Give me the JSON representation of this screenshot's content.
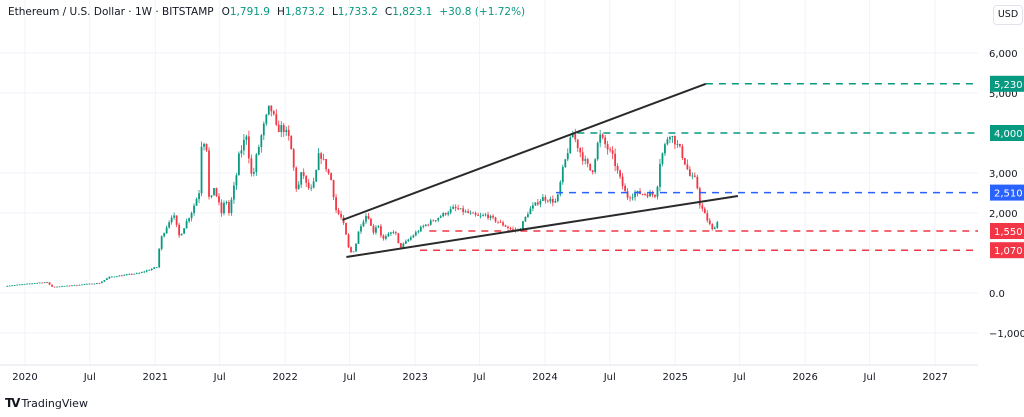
{
  "header": {
    "symbol": "Ethereum / U.S. Dollar · 1W · BITSTAMP",
    "open_label": "O",
    "open": "1,791.9",
    "high_label": "H",
    "high": "1,873.2",
    "low_label": "L",
    "low": "1,733.2",
    "close_label": "C",
    "close": "1,823.1",
    "change": "+30.8 (+1.72%)"
  },
  "currency": "USD",
  "branding": {
    "name": "TradingView",
    "logo_text": "TV"
  },
  "colors": {
    "up": "#089981",
    "down": "#f23645",
    "blue": "#2962ff",
    "trendline": "#2a2a2a",
    "grid": "#f0f3fa"
  },
  "chart_data": {
    "type": "candlestick",
    "interval": "1W",
    "grid": true,
    "ylim": [
      -1500,
      7000
    ],
    "xlim": [
      "2019-11-01",
      "2027-12-31"
    ],
    "y_ticks": [
      {
        "value": 6000,
        "label": "6,000"
      },
      {
        "value": 5000,
        "label": "5,000"
      },
      {
        "value": 3000,
        "label": "3,000"
      },
      {
        "value": 2000,
        "label": "2,000"
      },
      {
        "value": 0,
        "label": "0.0"
      },
      {
        "value": -1000,
        "label": "−1,000"
      }
    ],
    "x_ticks": [
      {
        "date": "2020-01-01",
        "label": "2020"
      },
      {
        "date": "2020-07-01",
        "label": "Jul"
      },
      {
        "date": "2021-01-01",
        "label": "2021"
      },
      {
        "date": "2021-07-01",
        "label": "Jul"
      },
      {
        "date": "2022-01-01",
        "label": "2022"
      },
      {
        "date": "2022-07-01",
        "label": "Jul"
      },
      {
        "date": "2023-01-01",
        "label": "2023"
      },
      {
        "date": "2023-07-01",
        "label": "Jul"
      },
      {
        "date": "2024-01-01",
        "label": "2024"
      },
      {
        "date": "2024-07-01",
        "label": "Jul"
      },
      {
        "date": "2025-01-01",
        "label": "2025"
      },
      {
        "date": "2025-07-01",
        "label": "Jul"
      },
      {
        "date": "2026-01-01",
        "label": "2026"
      },
      {
        "date": "2026-07-01",
        "label": "Jul"
      },
      {
        "date": "2027-01-01",
        "label": "2027"
      }
    ],
    "price_path": [
      [
        "2019-11-05",
        175
      ],
      [
        "2020-03-01",
        275
      ],
      [
        "2020-03-18",
        150
      ],
      [
        "2020-07-28",
        250
      ],
      [
        "2020-08-25",
        400
      ],
      [
        "2020-11-18",
        500
      ],
      [
        "2021-01-06",
        650
      ],
      [
        "2021-01-15",
        1325
      ],
      [
        "2021-02-20",
        2000
      ],
      [
        "2021-03-10",
        1400
      ],
      [
        "2021-04-01",
        1825
      ],
      [
        "2021-04-12",
        2000
      ],
      [
        "2021-05-06",
        2575
      ],
      [
        "2021-05-12",
        3950
      ],
      [
        "2021-05-27",
        3575
      ],
      [
        "2021-06-02",
        2150
      ],
      [
        "2021-06-15",
        2650
      ],
      [
        "2021-07-06",
        2000
      ],
      [
        "2021-07-18",
        2375
      ],
      [
        "2021-07-27",
        2000
      ],
      [
        "2021-08-18",
        3000
      ],
      [
        "2021-08-21",
        3325
      ],
      [
        "2021-09-15",
        4000
      ],
      [
        "2021-09-24",
        3150
      ],
      [
        "2021-10-01",
        2825
      ],
      [
        "2021-10-12",
        3400
      ],
      [
        "2021-10-30",
        4075
      ],
      [
        "2021-11-18",
        4650
      ],
      [
        "2021-11-27",
        4500
      ],
      [
        "2021-12-08",
        4075
      ],
      [
        "2021-12-25",
        4150
      ],
      [
        "2022-01-14",
        3825
      ],
      [
        "2022-01-22",
        3325
      ],
      [
        "2022-02-03",
        2500
      ],
      [
        "2022-02-18",
        3075
      ],
      [
        "2022-03-03",
        2650
      ],
      [
        "2022-03-17",
        2575
      ],
      [
        "2022-03-25",
        2825
      ],
      [
        "2022-04-07",
        3525
      ],
      [
        "2022-04-21",
        3250
      ],
      [
        "2022-05-10",
        2825
      ],
      [
        "2022-05-24",
        2075
      ],
      [
        "2022-06-11",
        1825
      ],
      [
        "2022-06-22",
        1400
      ],
      [
        "2022-07-01",
        1000
      ],
      [
        "2022-07-15",
        1075
      ],
      [
        "2022-07-29",
        1650
      ],
      [
        "2022-08-20",
        2000
      ],
      [
        "2022-09-04",
        1500
      ],
      [
        "2022-09-18",
        1750
      ],
      [
        "2022-10-01",
        1325
      ],
      [
        "2022-11-05",
        1575
      ],
      [
        "2022-11-18",
        1125
      ],
      [
        "2023-01-21",
        1650
      ],
      [
        "2023-04-20",
        2125
      ],
      [
        "2023-06-30",
        1900
      ],
      [
        "2023-07-19",
        1950
      ],
      [
        "2023-10-01",
        1575
      ],
      [
        "2023-10-20",
        1575
      ],
      [
        "2023-11-18",
        2075
      ],
      [
        "2023-12-25",
        2375
      ],
      [
        "2024-02-03",
        2275
      ],
      [
        "2024-02-20",
        3075
      ],
      [
        "2024-03-18",
        4000
      ],
      [
        "2024-04-15",
        3400
      ],
      [
        "2024-05-12",
        3000
      ],
      [
        "2024-06-02",
        3950
      ],
      [
        "2024-07-09",
        3400
      ],
      [
        "2024-07-28",
        2900
      ],
      [
        "2024-08-18",
        2400
      ],
      [
        "2024-09-15",
        2500
      ],
      [
        "2024-11-09",
        2450
      ],
      [
        "2024-11-18",
        3250
      ],
      [
        "2024-12-15",
        4025
      ],
      [
        "2025-01-15",
        3575
      ],
      [
        "2025-02-12",
        2900
      ],
      [
        "2025-03-01",
        2825
      ],
      [
        "2025-03-10",
        2250
      ],
      [
        "2025-03-28",
        1900
      ],
      [
        "2025-04-15",
        1575
      ],
      [
        "2025-05-03",
        1823
      ]
    ],
    "trendlines": [
      {
        "name": "upper-trendline",
        "from": [
          "2022-06-11",
          1825
        ],
        "to": [
          "2025-03-28",
          5230
        ]
      },
      {
        "name": "lower-trendline",
        "from": [
          "2022-06-22",
          900
        ],
        "to": [
          "2025-06-26",
          2425
        ]
      }
    ],
    "levels": [
      {
        "value": 5230,
        "label": "5,230",
        "color": "#089981",
        "from": "2025-03-28"
      },
      {
        "value": 4000,
        "label": "4,000",
        "color": "#089981",
        "from": "2024-04-01"
      },
      {
        "value": 2510,
        "label": "2,510",
        "color": "#2962ff",
        "from": "2024-02-01"
      },
      {
        "value": 1550,
        "label": "1,550",
        "color": "#f23645",
        "from": "2023-02-10"
      },
      {
        "value": 1070,
        "label": "1,070",
        "color": "#f23645",
        "from": "2023-01-15"
      }
    ]
  }
}
